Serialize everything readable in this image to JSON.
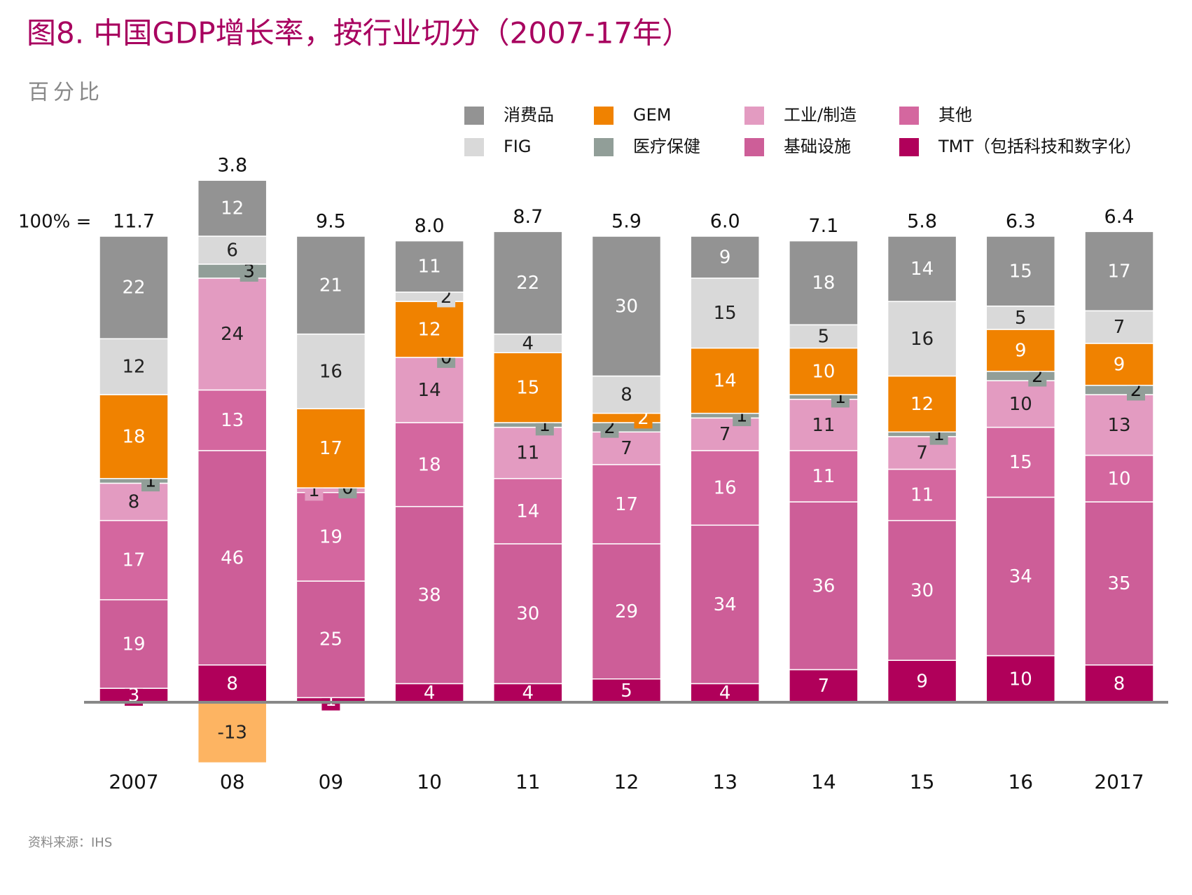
{
  "chart_data": {
    "type": "stacked_bar",
    "title": "图8. 中国GDP增长率，按行业切分（2007-17年）",
    "subtitle": "百分比",
    "source": "资料来源：IHS",
    "totals_prefix": "100% =",
    "categories": [
      "2007",
      "08",
      "09",
      "10",
      "11",
      "12",
      "13",
      "14",
      "15",
      "16",
      "2017"
    ],
    "totals": {
      "values": [
        11.7,
        3.8,
        9.5,
        8.0,
        8.7,
        5.9,
        6.0,
        7.1,
        5.8,
        6.3,
        6.4
      ],
      "value_labels": [
        "11.7",
        "3.8",
        "9.5",
        "8.0",
        "8.7",
        "5.9",
        "6.0",
        "7.1",
        "5.8",
        "6.3",
        "6.4"
      ]
    },
    "series": [
      {
        "name": "TMT（包括科技和数字化）",
        "color": "#b0005a",
        "label_color": "#ffffff",
        "values": [
          3,
          8,
          1,
          4,
          4,
          5,
          4,
          7,
          9,
          10,
          8
        ]
      },
      {
        "name": "基础设施",
        "color": "#cd5e98",
        "label_color": "#ffffff",
        "values": [
          19,
          46,
          25,
          38,
          30,
          29,
          34,
          36,
          30,
          34,
          35
        ]
      },
      {
        "name": "其他",
        "color": "#d4679f",
        "label_color": "#ffffff",
        "values": [
          17,
          13,
          19,
          18,
          14,
          17,
          16,
          11,
          11,
          15,
          10
        ]
      },
      {
        "name": "工业/制造",
        "color": "#e39bc1",
        "label_color": "#222222",
        "values": [
          8,
          24,
          1,
          14,
          11,
          7,
          7,
          11,
          7,
          10,
          13
        ]
      },
      {
        "name": "医疗保健",
        "color": "#919e98",
        "label_color": "#111111",
        "values": [
          1,
          3,
          0,
          0,
          1,
          2,
          1,
          1,
          1,
          2,
          2
        ]
      },
      {
        "name": "GEM",
        "color": "#f08200",
        "negative_color": "#fdb462",
        "label_color": "#ffffff",
        "values": [
          18,
          -13,
          17,
          12,
          15,
          2,
          14,
          10,
          12,
          9,
          9
        ]
      },
      {
        "name": "FIG",
        "color": "#d9d9d9",
        "label_color": "#222222",
        "values": [
          12,
          6,
          16,
          2,
          4,
          8,
          15,
          5,
          16,
          5,
          7
        ]
      },
      {
        "name": "消费品",
        "color": "#939393",
        "label_color": "#ffffff",
        "values": [
          22,
          12,
          21,
          11,
          22,
          30,
          9,
          18,
          14,
          15,
          17
        ]
      }
    ],
    "legend_order": [
      7,
      5,
      3,
      2,
      6,
      4,
      1,
      0
    ]
  }
}
